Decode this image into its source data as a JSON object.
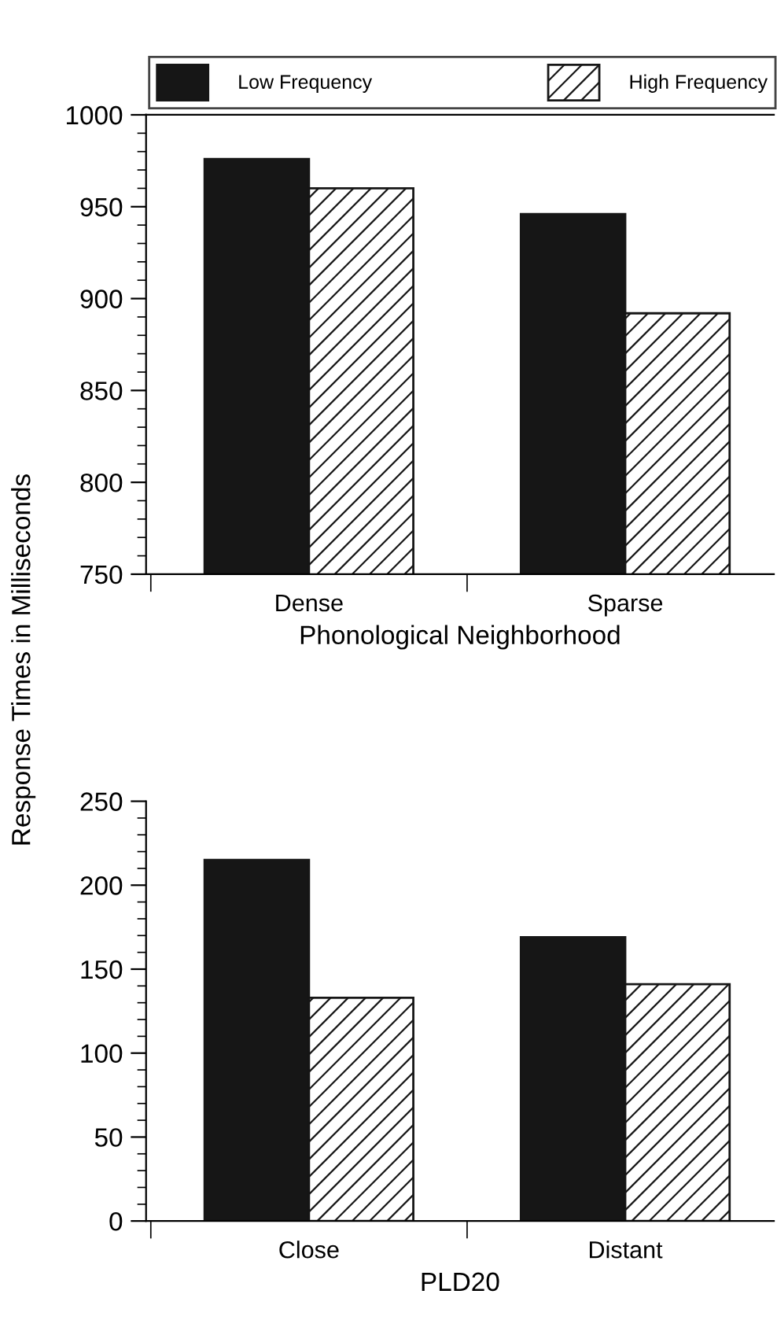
{
  "chart_data": [
    {
      "type": "bar",
      "xlabel": "Phonological Neighborhood",
      "ylabel": "Response Times in Milliseconds",
      "categories": [
        "Dense",
        "Sparse"
      ],
      "series": [
        {
          "name": "Low Frequency",
          "color": "#161616",
          "values": [
            976,
            946
          ]
        },
        {
          "name": "High Frequency",
          "color": "#ffffff",
          "values": [
            960,
            892
          ]
        }
      ],
      "ylim": [
        750,
        1000
      ],
      "yticks": [
        750,
        800,
        850,
        900,
        950,
        1000
      ],
      "legend": "top",
      "grid": false
    },
    {
      "type": "bar",
      "xlabel": "PLD20",
      "categories": [
        "Close",
        "Distant"
      ],
      "series": [
        {
          "color": "#161616",
          "values": [
            215,
            169
          ]
        },
        {
          "color": "#ffffff",
          "values": [
            133,
            141
          ]
        }
      ],
      "ylim": [
        0,
        250
      ],
      "yticks": [
        0,
        50,
        100,
        150,
        200,
        250
      ],
      "grid": false
    }
  ]
}
